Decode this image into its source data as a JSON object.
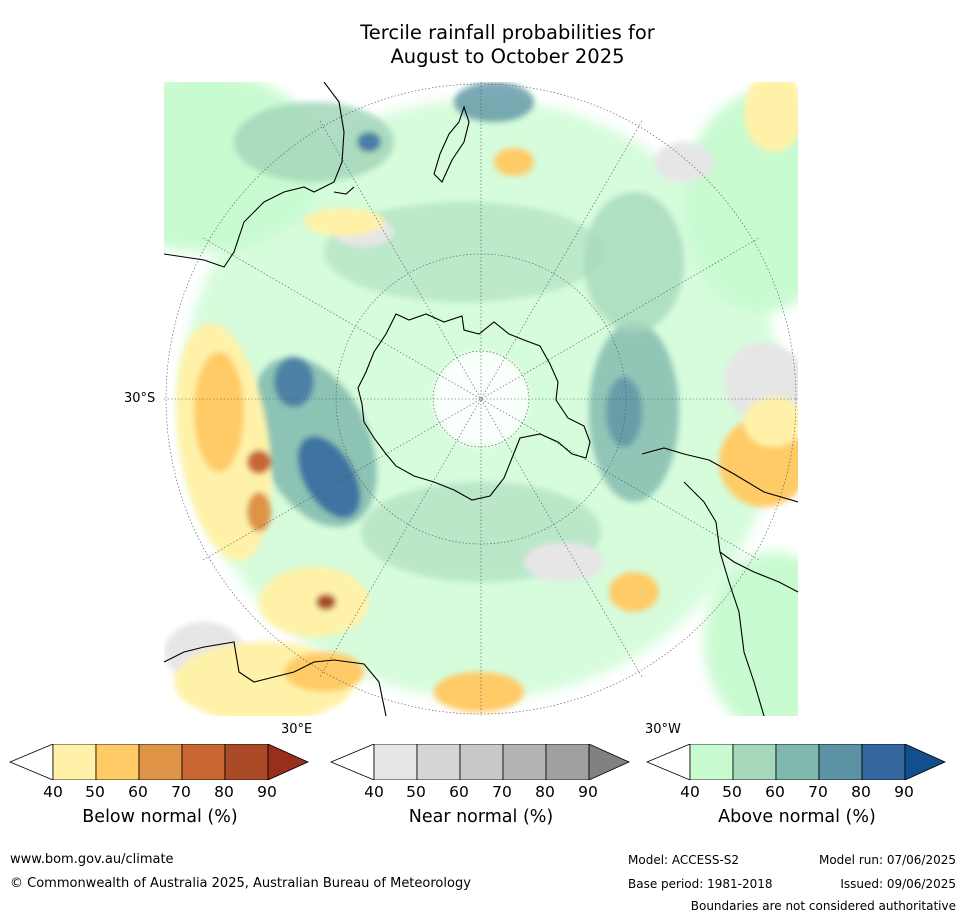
{
  "title_line1": "Tercile rainfall probabilities for",
  "title_line2": "August to October 2025",
  "map": {
    "projection": "south-polar-stereographic",
    "lat_label": "30°S",
    "lon_label_east": "30°E",
    "lon_label_west": "30°W",
    "colors": {
      "below": [
        "#fff2a8",
        "#ffcb66",
        "#de9346",
        "#c96634",
        "#ab4a26",
        "#9a2e1c"
      ],
      "near": [
        "#e6e6e6",
        "#d6d6d6",
        "#c8c8c8",
        "#b4b4b4",
        "#a0a0a0",
        "#808080"
      ],
      "above": [
        "#c8fbd0",
        "#a6d8bb",
        "#80b8ae",
        "#5c93a4",
        "#33679e",
        "#134f8c"
      ]
    }
  },
  "colorbars": [
    {
      "name": "below",
      "title": "Below normal (%)",
      "ticks": [
        "40",
        "50",
        "60",
        "70",
        "80",
        "90"
      ]
    },
    {
      "name": "near",
      "title": "Near normal (%)",
      "ticks": [
        "40",
        "50",
        "60",
        "70",
        "80",
        "90"
      ]
    },
    {
      "name": "above",
      "title": "Above normal (%)",
      "ticks": [
        "40",
        "50",
        "60",
        "70",
        "80",
        "90"
      ]
    }
  ],
  "footer": {
    "website": "www.bom.gov.au/climate",
    "copyright": "© Commonwealth of Australia 2025, Australian Bureau of Meteorology",
    "model": "Model: ACCESS-S2",
    "base_period": "Base period: 1981-2018",
    "model_run": "Model run: 07/06/2025",
    "issued": "Issued: 09/06/2025",
    "disclaimer": "Boundaries are not considered authoritative"
  }
}
